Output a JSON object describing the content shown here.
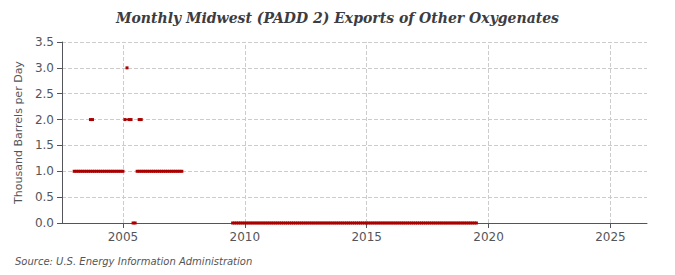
{
  "chart_data": {
    "type": "line",
    "title": "Monthly Midwest (PADD 2) Exports of Other Oxygenates",
    "ylabel": "Thousand Barrels per Day",
    "source": "Source: U.S. Energy Information Administration",
    "color": "#aa0000",
    "marker": "square",
    "line_style": "solid",
    "grid": true,
    "xlim": [
      2002.5,
      2026.5
    ],
    "xticks": [
      2005,
      2010,
      2015,
      2020,
      2025
    ],
    "ylim": [
      0,
      3.5
    ],
    "yticks": [
      {
        "value": 0.0,
        "label": "0.0"
      },
      0.5,
      {
        "value": 1.0,
        "label": "1.0"
      },
      1.5,
      {
        "value": 2.0,
        "label": "2.0"
      },
      2.5,
      {
        "value": 3.0,
        "label": "3.0"
      },
      3.5
    ],
    "series": [
      {
        "x": [
          2003.0,
          2003.083,
          2003.167,
          2003.25,
          2003.333,
          2003.417,
          2003.5,
          2003.583,
          2003.667,
          2003.75,
          2003.833,
          2003.917,
          2004.0,
          2004.083,
          2004.167,
          2004.25,
          2004.333,
          2004.417,
          2004.5,
          2004.583,
          2004.667,
          2004.75,
          2004.833,
          2004.917,
          2005.0
        ],
        "values": [
          1.0,
          1.0,
          1.0,
          1.0,
          1.0,
          1.0,
          1.0,
          1.0,
          1.0,
          1.0,
          1.0,
          1.0,
          1.0,
          1.0,
          1.0,
          1.0,
          1.0,
          1.0,
          1.0,
          1.0,
          1.0,
          1.0,
          1.0,
          1.0,
          1.0
        ]
      },
      {
        "x": [
          2003.667,
          2003.75
        ],
        "values": [
          2.0,
          2.0
        ]
      },
      {
        "x": [
          2005.083,
          2005.25,
          2005.333
        ],
        "values": [
          2.0,
          2.0,
          2.0
        ]
      },
      {
        "x": [
          2005.167
        ],
        "values": [
          3.0
        ]
      },
      {
        "x": [
          2005.417,
          2005.5
        ],
        "values": [
          0.0,
          0.0
        ]
      },
      {
        "x": [
          2005.583,
          2005.667,
          2005.75,
          2005.833,
          2005.917,
          2006.0,
          2006.083,
          2006.167,
          2006.25,
          2006.333,
          2006.417,
          2006.5,
          2006.583,
          2006.667,
          2006.75,
          2006.833,
          2006.917,
          2007.0,
          2007.083,
          2007.167,
          2007.25,
          2007.333,
          2007.417
        ],
        "values": [
          1.0,
          1.0,
          1.0,
          1.0,
          1.0,
          1.0,
          1.0,
          1.0,
          1.0,
          1.0,
          1.0,
          1.0,
          1.0,
          1.0,
          1.0,
          1.0,
          1.0,
          1.0,
          1.0,
          1.0,
          1.0,
          1.0,
          1.0
        ]
      },
      {
        "x": [
          2005.667,
          2005.75
        ],
        "values": [
          2.0,
          2.0
        ]
      },
      {
        "x": [
          2009.5,
          2009.583,
          2009.667,
          2009.75,
          2009.833,
          2009.917,
          2010.0,
          2010.083,
          2010.167,
          2010.25,
          2010.333,
          2010.417,
          2010.5,
          2010.583,
          2010.667,
          2010.75,
          2010.833,
          2010.917,
          2011.0,
          2011.083,
          2011.167,
          2011.25,
          2011.333,
          2011.417,
          2011.5,
          2011.583,
          2011.667,
          2011.75,
          2011.833,
          2011.917,
          2012.0,
          2012.083,
          2012.167,
          2012.25,
          2012.333,
          2012.417,
          2012.5,
          2012.583,
          2012.667,
          2012.75,
          2012.833,
          2012.917,
          2013.0,
          2013.083,
          2013.167,
          2013.25,
          2013.333,
          2013.417,
          2013.5,
          2013.583,
          2013.667,
          2013.75,
          2013.833,
          2013.917,
          2014.0,
          2014.083,
          2014.167,
          2014.25,
          2014.333,
          2014.417,
          2014.5,
          2014.583,
          2014.667,
          2014.75,
          2014.833,
          2014.917,
          2015.0,
          2015.083,
          2015.167,
          2015.25,
          2015.333,
          2015.417,
          2015.5,
          2015.583,
          2015.667,
          2015.75,
          2015.833,
          2015.917,
          2016.0,
          2016.083,
          2016.167,
          2016.25,
          2016.333,
          2016.417,
          2016.5,
          2016.583,
          2016.667,
          2016.75,
          2016.833,
          2016.917,
          2017.0,
          2017.083,
          2017.167,
          2017.25,
          2017.333,
          2017.417,
          2017.5,
          2017.583,
          2017.667,
          2017.75,
          2017.833,
          2017.917,
          2018.0,
          2018.083,
          2018.167,
          2018.25,
          2018.333,
          2018.417,
          2018.5,
          2018.583,
          2018.667,
          2018.75,
          2018.833,
          2018.917,
          2019.0,
          2019.083,
          2019.167,
          2019.25,
          2019.333,
          2019.417,
          2019.5
        ],
        "values": [
          0.0,
          0.0,
          0.0,
          0.0,
          0.0,
          0.0,
          0.0,
          0.0,
          0.0,
          0.0,
          0.0,
          0.0,
          0.0,
          0.0,
          0.0,
          0.0,
          0.0,
          0.0,
          0.0,
          0.0,
          0.0,
          0.0,
          0.0,
          0.0,
          0.0,
          0.0,
          0.0,
          0.0,
          0.0,
          0.0,
          0.0,
          0.0,
          0.0,
          0.0,
          0.0,
          0.0,
          0.0,
          0.0,
          0.0,
          0.0,
          0.0,
          0.0,
          0.0,
          0.0,
          0.0,
          0.0,
          0.0,
          0.0,
          0.0,
          0.0,
          0.0,
          0.0,
          0.0,
          0.0,
          0.0,
          0.0,
          0.0,
          0.0,
          0.0,
          0.0,
          0.0,
          0.0,
          0.0,
          0.0,
          0.0,
          0.0,
          0.0,
          0.0,
          0.0,
          0.0,
          0.0,
          0.0,
          0.0,
          0.0,
          0.0,
          0.0,
          0.0,
          0.0,
          0.0,
          0.0,
          0.0,
          0.0,
          0.0,
          0.0,
          0.0,
          0.0,
          0.0,
          0.0,
          0.0,
          0.0,
          0.0,
          0.0,
          0.0,
          0.0,
          0.0,
          0.0,
          0.0,
          0.0,
          0.0,
          0.0,
          0.0,
          0.0,
          0.0,
          0.0,
          0.0,
          0.0,
          0.0,
          0.0,
          0.0,
          0.0,
          0.0,
          0.0,
          0.0,
          0.0,
          0.0,
          0.0,
          0.0,
          0.0,
          0.0,
          0.0,
          0.0
        ]
      }
    ]
  }
}
